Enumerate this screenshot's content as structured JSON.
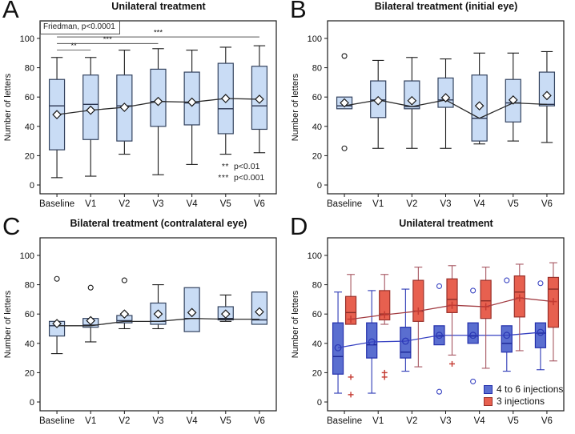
{
  "chart_data": [
    {
      "type": "box",
      "letter": "A",
      "title": "Unilateral treatment",
      "ylabel": "Number of letters",
      "categories": [
        "Baseline",
        "V1",
        "V2",
        "V3",
        "V4",
        "V5",
        "V6"
      ],
      "yticks": [
        0,
        20,
        40,
        60,
        80,
        100
      ],
      "ylim": [
        -6,
        112
      ],
      "annotation": "Friedman, p<0.0001",
      "sig_bars": [
        {
          "from": 0,
          "to": 1,
          "y": 92,
          "label": "**"
        },
        {
          "from": 0,
          "to": 3,
          "y": 96.5,
          "label": "***"
        },
        {
          "from": 0,
          "to": 6,
          "y": 101,
          "label": "***"
        }
      ],
      "sig_legend": [
        {
          "symbol": "**",
          "text": "p<0.01"
        },
        {
          "symbol": "***",
          "text": "p<0.001"
        }
      ],
      "series": [
        {
          "mean_marker": "diamond",
          "outlier_marker": "circle",
          "colors": {
            "box_fill": "#c9dcf5",
            "box_stroke": "#33425e",
            "whisker": "#1a1a1a",
            "median": "#2a3550",
            "mean": "#1a1a1a",
            "mean_fill": "#ffffff",
            "line": "#2b2b2b",
            "outlier": "#1a1a1a"
          },
          "boxes": [
            [
              5,
              24,
              54,
              72,
              87,
              48
            ],
            [
              6,
              31,
              55,
              75,
              87,
              51
            ],
            [
              21,
              30,
              54,
              75,
              92,
              53
            ],
            [
              7,
              40,
              57,
              79,
              93,
              57
            ],
            [
              14,
              41,
              56,
              77,
              92,
              56.5
            ],
            [
              21,
              35,
              52,
              83,
              94,
              59
            ],
            [
              22,
              38,
              54,
              81,
              95,
              58.5
            ]
          ],
          "line": [
            48,
            51,
            53,
            57,
            56.5,
            59,
            58.5
          ],
          "outliers": [
            [],
            [],
            [],
            [],
            [],
            [],
            []
          ]
        }
      ]
    },
    {
      "type": "box",
      "letter": "B",
      "title": "Bilateral treatment (initial eye)",
      "ylabel": "Number of letters",
      "categories": [
        "Baseline",
        "V1",
        "V2",
        "V3",
        "V4",
        "V5",
        "V6"
      ],
      "yticks": [
        0,
        20,
        40,
        60,
        80,
        100
      ],
      "ylim": [
        -6,
        112
      ],
      "series": [
        {
          "mean_marker": "diamond",
          "outlier_marker": "circle",
          "colors": {
            "box_fill": "#c9dcf5",
            "box_stroke": "#33425e",
            "whisker": "#1a1a1a",
            "median": "#2a3550",
            "mean": "#1a1a1a",
            "mean_fill": "#ffffff",
            "line": "#2b2b2b",
            "outlier": "#1a1a1a"
          },
          "boxes": [
            [
              52,
              52,
              54,
              60,
              60,
              56
            ],
            [
              25,
              46,
              58,
              71,
              85,
              57.5
            ],
            [
              25,
              52,
              53.5,
              71,
              87,
              57.5
            ],
            [
              25,
              53,
              58,
              73,
              86,
              59.5
            ],
            [
              28,
              30,
              45.5,
              75,
              90,
              54
            ],
            [
              30,
              43,
              56,
              72,
              90,
              58
            ],
            [
              29,
              54,
              55,
              77,
              91,
              61
            ]
          ],
          "line": [
            54,
            58,
            53.5,
            58,
            45.5,
            56,
            55
          ],
          "outliers": [
            [
              88,
              25
            ],
            [],
            [],
            [],
            [],
            [],
            []
          ]
        }
      ]
    },
    {
      "type": "box",
      "letter": "C",
      "title": "Bilateral treatment (contralateral eye)",
      "ylabel": "Number of letters",
      "categories": [
        "Baseline",
        "V1",
        "V2",
        "V3",
        "V4",
        "V5",
        "V6"
      ],
      "yticks": [
        0,
        20,
        40,
        60,
        80,
        100
      ],
      "ylim": [
        -6,
        112
      ],
      "series": [
        {
          "mean_marker": "diamond",
          "outlier_marker": "circle",
          "colors": {
            "box_fill": "#c9dcf5",
            "box_stroke": "#33425e",
            "whisker": "#1a1a1a",
            "median": "#2a3550",
            "mean": "#1a1a1a",
            "mean_fill": "#ffffff",
            "line": "#2b2b2b",
            "outlier": "#1a1a1a"
          },
          "boxes": [
            [
              33,
              45,
              52,
              55,
              55,
              53.5
            ],
            [
              41,
              51,
              52.5,
              57,
              57,
              55.5
            ],
            [
              50,
              54,
              55.5,
              59,
              59,
              60
            ],
            [
              50,
              53,
              55,
              67.5,
              80,
              60
            ],
            [
              48,
              48,
              57,
              78,
              78,
              61
            ],
            [
              55,
              56,
              57,
              65,
              73,
              60
            ],
            [
              53,
              53,
              56,
              75,
              75,
              61.5
            ]
          ],
          "line": [
            52,
            52,
            55,
            55,
            57,
            56.5,
            56.5
          ],
          "outliers": [
            [
              84
            ],
            [
              78
            ],
            [
              83
            ],
            [],
            [],
            [],
            []
          ]
        }
      ]
    },
    {
      "type": "box",
      "letter": "D",
      "title": "Unilateral treatment",
      "ylabel": "Number of letters",
      "categories": [
        "Baseline",
        "V1",
        "V2",
        "V3",
        "V4",
        "V5",
        "V6"
      ],
      "yticks": [
        0,
        20,
        40,
        60,
        80,
        100
      ],
      "ylim": [
        -6,
        112
      ],
      "series": [
        {
          "name": "4 to 6 injections",
          "mean_marker": "circle",
          "outlier_marker": "circle",
          "colors": {
            "box_fill": "#5a6ed0",
            "box_stroke": "#2430ac",
            "whisker": "#2d3ab6",
            "median": "#1c2796",
            "mean": "#2d3ab6",
            "mean_fill": "none",
            "line": "#3843c2",
            "outlier": "#3843c2"
          },
          "boxes": [
            [
              6,
              19,
              31,
              54,
              75,
              37
            ],
            [
              6,
              30,
              39,
              54,
              76,
              41
            ],
            [
              21,
              30,
              34,
              51,
              77,
              41.5
            ],
            [
              39,
              39,
              45,
              52,
              52,
              45.5
            ],
            [
              40,
              40,
              45,
              54,
              54,
              45.5
            ],
            [
              21,
              34,
              40,
              52,
              52,
              45.5
            ],
            [
              22,
              37,
              47,
              54,
              54,
              47.5
            ]
          ],
          "line": [
            37,
            41,
            41.5,
            45.5,
            45.5,
            45.5,
            47.5
          ],
          "outliers": [
            [],
            [],
            [],
            [
              79,
              7
            ],
            [
              76,
              14
            ],
            [
              83
            ],
            [
              81
            ]
          ]
        },
        {
          "name": "3 injections",
          "mean_marker": "plus",
          "outlier_marker": "plus",
          "colors": {
            "box_fill": "#e7604f",
            "box_stroke": "#99302a",
            "whisker": "#a65560",
            "median": "#8c2c26",
            "mean": "#c43a31",
            "mean_fill": "none",
            "line": "#a23c42",
            "outlier": "#c43a31"
          },
          "boxes": [
            [
              53,
              53,
              61,
              72,
              87,
              56.5
            ],
            [
              53,
              56,
              60,
              76,
              87,
              59.5
            ],
            [
              24,
              55,
              62,
              83,
              92,
              62
            ],
            [
              32,
              61,
              70,
              84,
              93,
              66
            ],
            [
              23,
              57,
              69,
              83,
              92,
              65
            ],
            [
              35,
              58,
              75,
              86,
              94,
              71
            ],
            [
              28,
              51,
              77,
              85,
              95,
              68.5
            ]
          ],
          "line": [
            56.5,
            59.5,
            62,
            66,
            65,
            71,
            68.5
          ],
          "outliers": [
            [
              17,
              5
            ],
            [
              20,
              17
            ],
            [],
            [
              26
            ],
            [],
            [],
            []
          ]
        }
      ]
    }
  ]
}
